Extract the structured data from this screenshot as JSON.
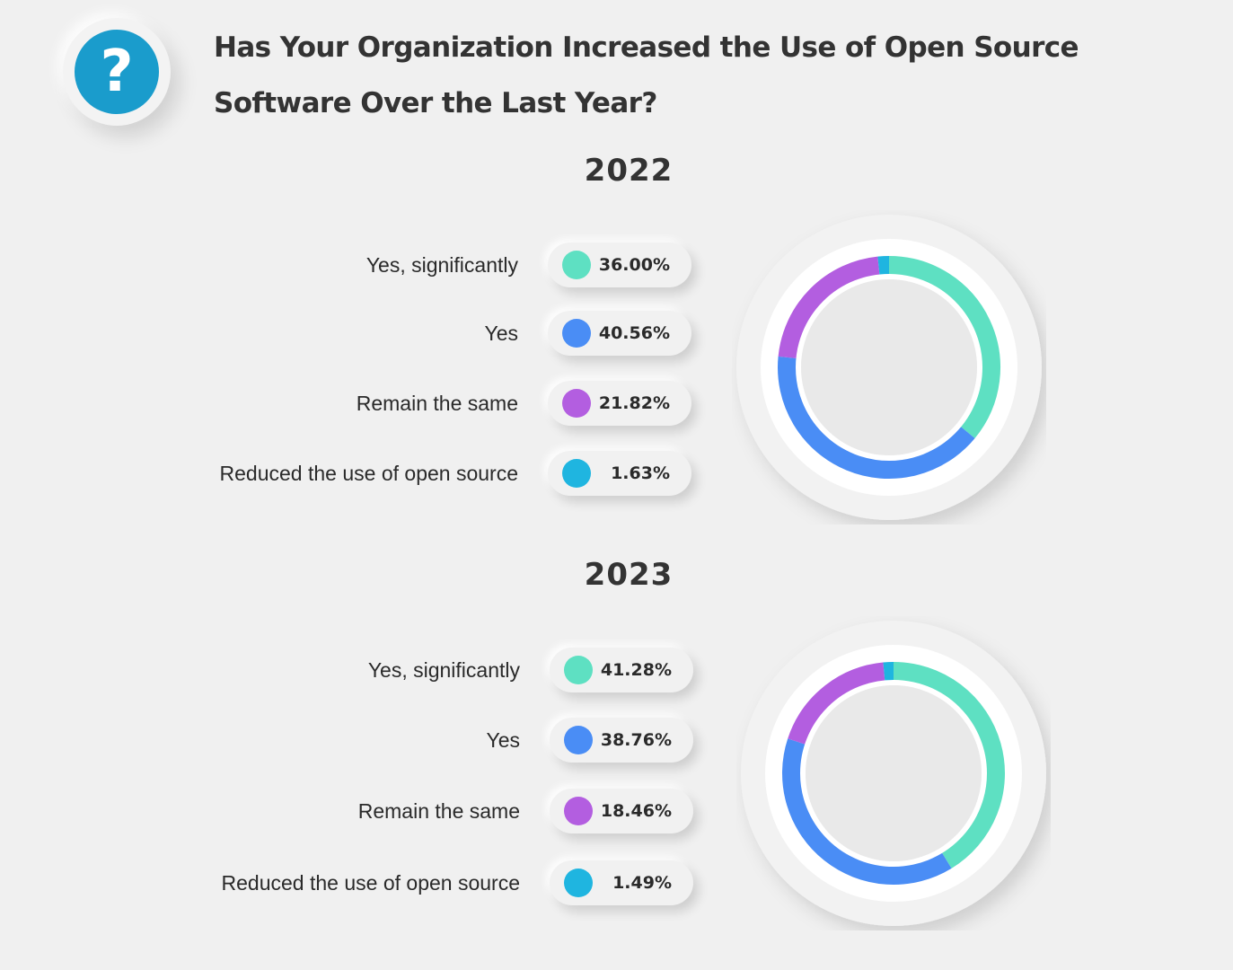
{
  "title": "Has Your Organization Increased the Use of Open Source Software Over the Last Year?",
  "badge_symbol": "?",
  "colors": {
    "yes_significantly": "#5ee0c2",
    "yes": "#4a8df5",
    "remain_same": "#b35ee0",
    "reduced": "#1fb5e0",
    "badge": "#1a9ccc"
  },
  "chart_data": [
    {
      "type": "pie",
      "title": "2022",
      "categories": [
        "Yes, significantly",
        "Yes",
        "Remain the same",
        "Reduced the use of open source"
      ],
      "values": [
        36.0,
        40.56,
        21.82,
        1.63
      ],
      "value_labels": [
        "36.00%",
        "40.56%",
        "21.82%",
        "1.63%"
      ]
    },
    {
      "type": "pie",
      "title": "2023",
      "categories": [
        "Yes, significantly",
        "Yes",
        "Remain the same",
        "Reduced the use of open source"
      ],
      "values": [
        41.28,
        38.76,
        18.46,
        1.49
      ],
      "value_labels": [
        "41.28%",
        "38.76%",
        "18.46%",
        "1.49%"
      ]
    }
  ]
}
